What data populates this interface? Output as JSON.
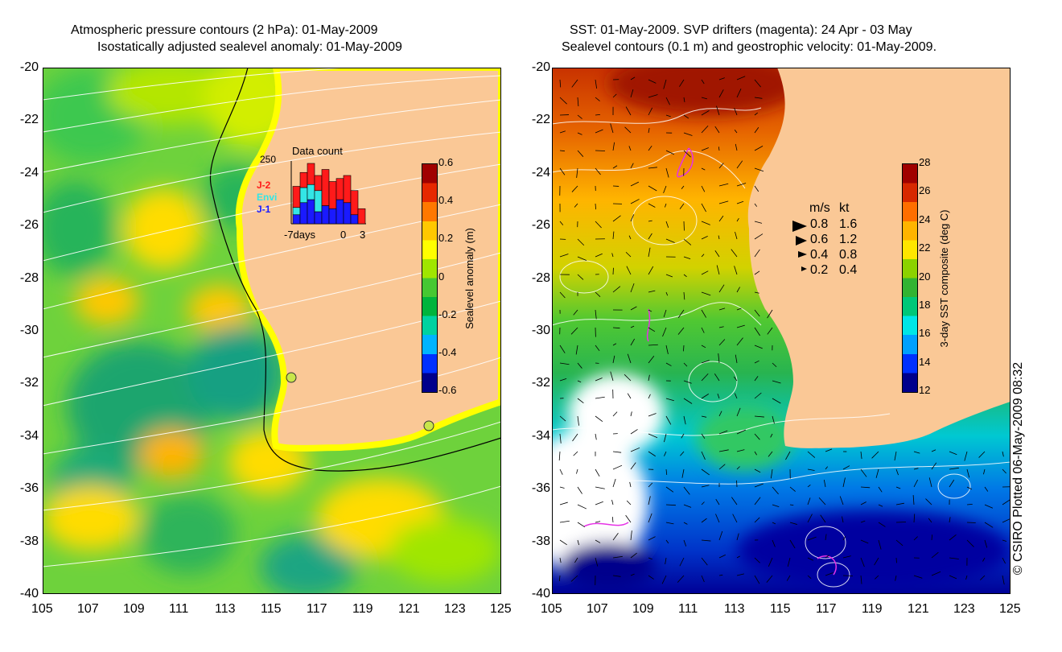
{
  "left_panel": {
    "title_line1": "Atmospheric pressure contours (2 hPa): 01-May-2009",
    "title_line2": "Isostatically adjusted sealevel anomaly: 01-May-2009",
    "x_ticks": [
      "105",
      "107",
      "109",
      "111",
      "113",
      "115",
      "117",
      "119",
      "121",
      "123",
      "125"
    ],
    "y_ticks": [
      "-20",
      "-22",
      "-24",
      "-26",
      "-28",
      "-30",
      "-32",
      "-34",
      "-36",
      "-38",
      "-40"
    ],
    "data_count": {
      "title": "Data count",
      "y_max_label": "250",
      "x_tick_left": "-7days",
      "x_tick_zero": "0",
      "x_tick_right": "3",
      "legend": [
        {
          "label": "J-2",
          "color": "#ff1a1a"
        },
        {
          "label": "Envi",
          "color": "#33e6e6"
        },
        {
          "label": "J-1",
          "color": "#1a1aff"
        }
      ],
      "bars": [
        {
          "j1": 0.15,
          "envi": 0.12,
          "j2": 0.35
        },
        {
          "j1": 0.35,
          "envi": 0.25,
          "j2": 0.25
        },
        {
          "j1": 0.4,
          "envi": 0.25,
          "j2": 0.35
        },
        {
          "j1": 0.2,
          "envi": 0.35,
          "j2": 0.25
        },
        {
          "j1": 0.3,
          "envi": 0.0,
          "j2": 0.6
        },
        {
          "j1": 0.25,
          "envi": 0.0,
          "j2": 0.45
        },
        {
          "j1": 0.4,
          "envi": 0.0,
          "j2": 0.35
        },
        {
          "j1": 0.35,
          "envi": 0.0,
          "j2": 0.45
        },
        {
          "j1": 0.15,
          "envi": 0.0,
          "j2": 0.4
        },
        {
          "j1": 0.0,
          "envi": 0.0,
          "j2": 0.25
        }
      ]
    },
    "colorbar": {
      "label": "Sealevel anomaly (m)",
      "ticks": [
        "0.6",
        "0.4",
        "0.2",
        "0",
        "-0.2",
        "-0.4",
        "-0.6"
      ],
      "colors": [
        "#00008c",
        "#0030ff",
        "#00b4ff",
        "#00d2a0",
        "#00b43c",
        "#46c832",
        "#a0e600",
        "#ffff00",
        "#ffc800",
        "#ff7800",
        "#e62800",
        "#a00000"
      ]
    }
  },
  "right_panel": {
    "title_line1": "SST: 01-May-2009. SVP drifters (magenta): 24 Apr - 03 May",
    "title_line2": "Sealevel contours (0.1 m) and geostrophic velocity: 01-May-2009.",
    "x_ticks": [
      "105",
      "107",
      "109",
      "111",
      "113",
      "115",
      "117",
      "119",
      "121",
      "123",
      "125"
    ],
    "y_ticks": [
      "-20",
      "-22",
      "-24",
      "-26",
      "-28",
      "-30",
      "-32",
      "-34",
      "-36",
      "-38",
      "-40"
    ],
    "velocity_legend": {
      "header_ms": "m/s",
      "header_kt": "kt",
      "rows": [
        {
          "ms": "0.8",
          "kt": "1.6",
          "scale": 1.0
        },
        {
          "ms": "0.6",
          "kt": "1.2",
          "scale": 0.75
        },
        {
          "ms": "0.4",
          "kt": "0.8",
          "scale": 0.5
        },
        {
          "ms": "0.2",
          "kt": "0.4",
          "scale": 0.25
        }
      ]
    },
    "colorbar": {
      "label": "3-day SST composite (deg C)",
      "ticks": [
        "28",
        "26",
        "24",
        "22",
        "20",
        "18",
        "16",
        "14",
        "12"
      ],
      "colors": [
        "#00008c",
        "#0030ff",
        "#00a0ff",
        "#00e6e6",
        "#00c878",
        "#32b432",
        "#8cd200",
        "#ffe600",
        "#ffb400",
        "#ff6e00",
        "#d72800",
        "#a00000"
      ]
    }
  },
  "footer": {
    "credit": "© CSIRO Plotted 06-May-2009 08:32"
  }
}
